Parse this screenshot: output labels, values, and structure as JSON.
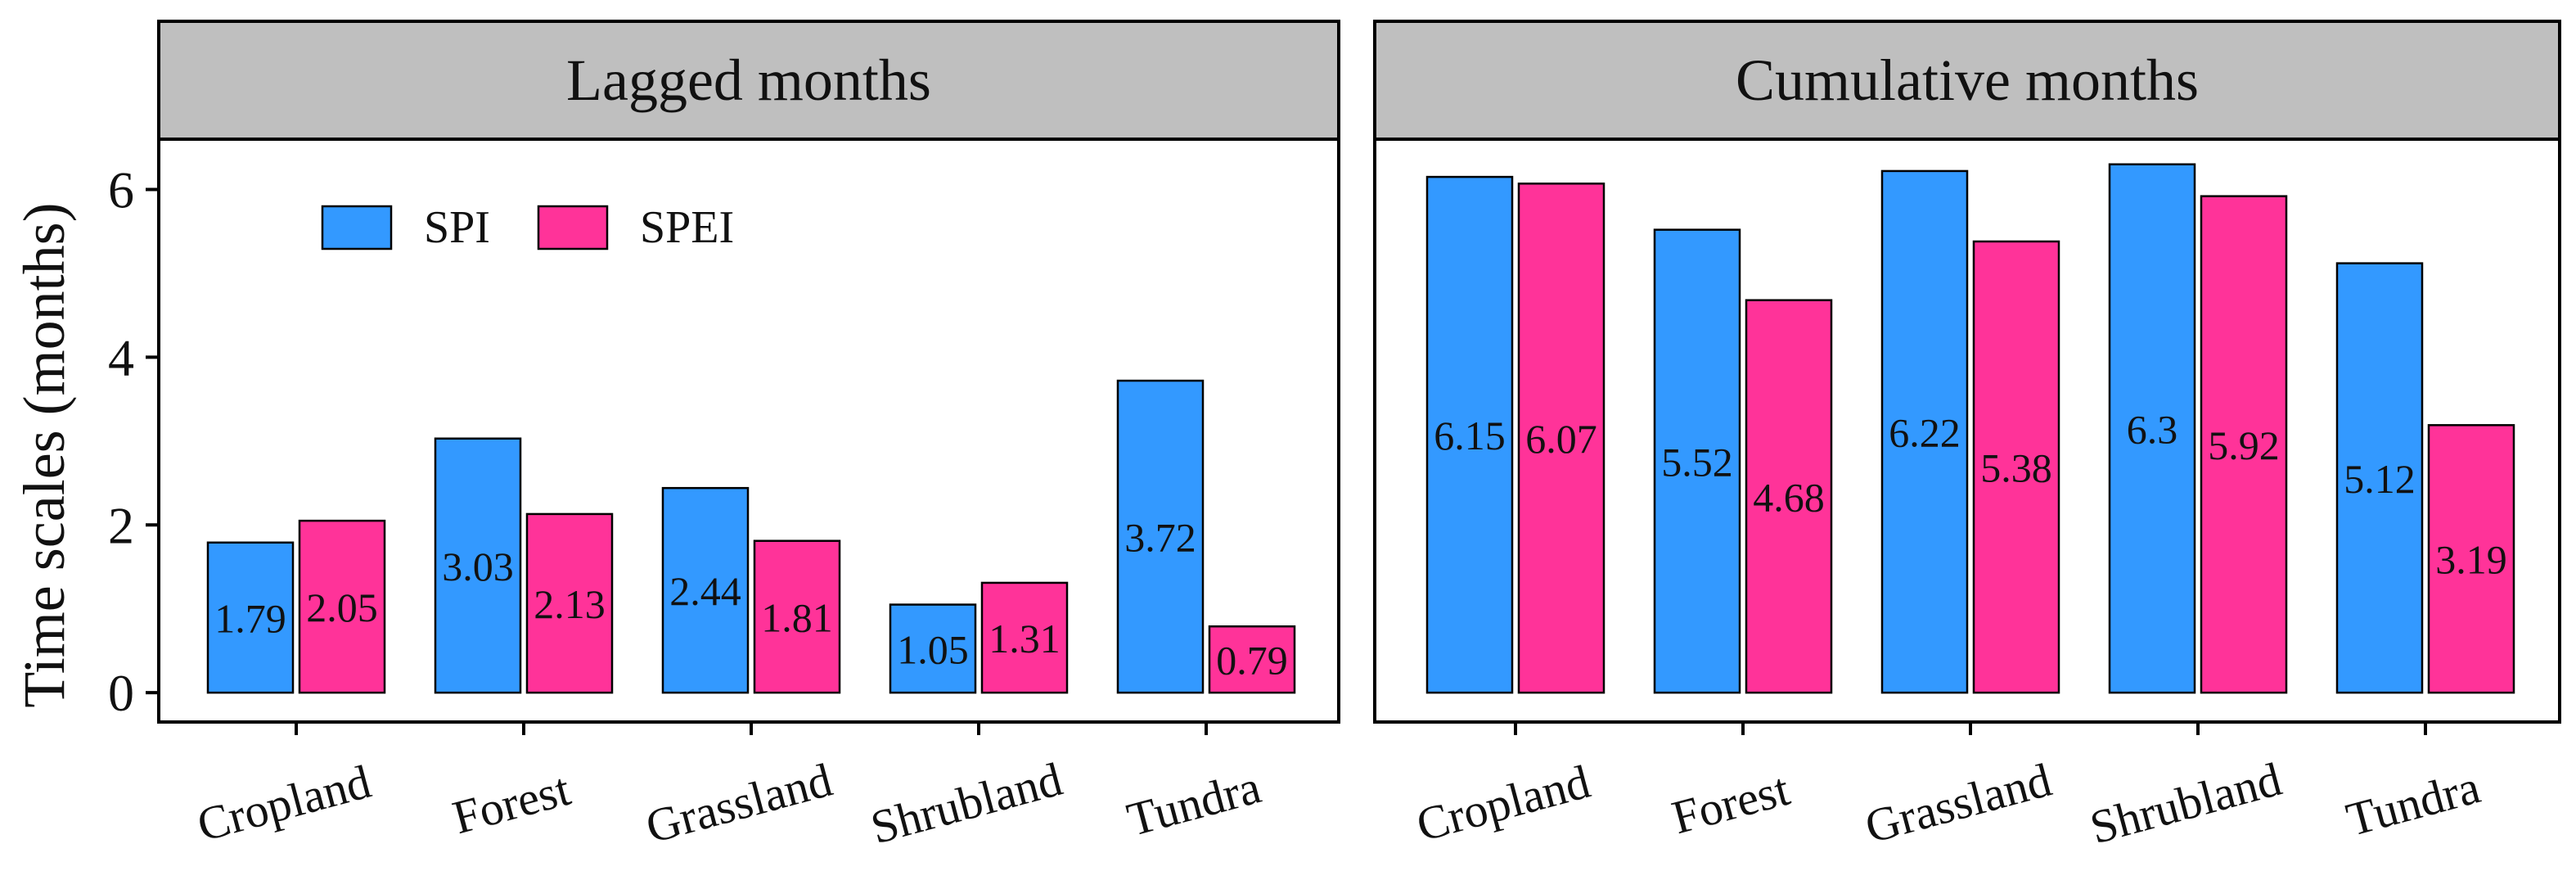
{
  "chart_data": [
    {
      "type": "bar",
      "title": "Lagged months",
      "ylabel": "Time scales (months)",
      "xlabel": "",
      "ylim": [
        -0.35,
        6.6
      ],
      "yticks": [
        0,
        2,
        4,
        6
      ],
      "categories": [
        "Cropland",
        "Forest",
        "Grassland",
        "Shrubland",
        "Tundra"
      ],
      "series": [
        {
          "name": "SPI",
          "color": "#3399ff",
          "values": [
            1.79,
            3.03,
            2.44,
            1.05,
            3.72
          ],
          "labels": [
            "1.79",
            "3.03",
            "2.44",
            "1.05",
            "3.72"
          ]
        },
        {
          "name": "SPEI",
          "color": "#ff3399",
          "values": [
            2.05,
            2.13,
            1.81,
            1.31,
            0.79
          ],
          "labels": [
            "2.05",
            "2.13",
            "1.81",
            "1.31",
            "0.79"
          ]
        }
      ],
      "legend": {
        "position": "top-left",
        "entries": [
          "SPI",
          "SPEI"
        ]
      }
    },
    {
      "type": "bar",
      "title": "Cumulative months",
      "ylabel": "",
      "xlabel": "",
      "ylim": [
        -0.35,
        6.6
      ],
      "yticks": [
        0,
        2,
        4,
        6
      ],
      "categories": [
        "Cropland",
        "Forest",
        "Grassland",
        "Shrubland",
        "Tundra"
      ],
      "series": [
        {
          "name": "SPI",
          "color": "#3399ff",
          "values": [
            6.15,
            5.52,
            6.22,
            6.3,
            5.12
          ],
          "labels": [
            "6.15",
            "5.52",
            "6.22",
            "6.3",
            "5.12"
          ]
        },
        {
          "name": "SPEI",
          "color": "#ff3399",
          "values": [
            6.07,
            4.68,
            5.38,
            5.92,
            3.19
          ],
          "labels": [
            "6.07",
            "4.68",
            "5.38",
            "5.92",
            "3.19"
          ]
        }
      ]
    }
  ],
  "colors": {
    "spi": "#3399ff",
    "spei": "#ff3399",
    "strip": "#bfbfbf"
  }
}
